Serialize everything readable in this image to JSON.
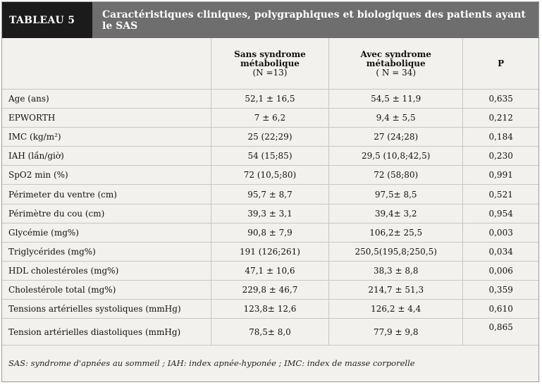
{
  "header": {
    "label": "TABLEAU 5",
    "title": "Caractéristiques cliniques, polygraphiques et biologiques des patients ayant le SAS"
  },
  "columns": [
    {
      "line1": "Sans syndrome",
      "line2": "métabolique",
      "line3": "(N =13)"
    },
    {
      "line1": "Avec syndrome",
      "line2": "métabolique",
      "line3": "( N = 34)"
    },
    {
      "line1": "P"
    }
  ],
  "rows": [
    {
      "label": "Age (ans)",
      "a": "52,1 ± 16,5",
      "b": "54,5 ± 11,9",
      "p": "0,635"
    },
    {
      "label": "EPWORTH",
      "a": "7 ± 6,2",
      "b": "9,4 ± 5,5",
      "p": "0,212"
    },
    {
      "label": "IMC (kg/m²)",
      "a": "25 (22;29)",
      "b": "27 (24;28)",
      "p": "0,184"
    },
    {
      "label": "IAH (lần/giờ)",
      "a": "54 (15;85)",
      "b": "29,5 (10,8;42,5)",
      "p": "0,230"
    },
    {
      "label": "SpO2 min (%)",
      "a": "72 (10,5;80)",
      "b": "72 (58;80)",
      "p": "0,991"
    },
    {
      "label": "Périmeter du ventre (cm)",
      "a": "95,7 ± 8,7",
      "b": "97,5± 8,5",
      "p": "0,521"
    },
    {
      "label": "Périmètre du cou  (cm)",
      "a": "39,3 ± 3,1",
      "b": "39,4± 3,2",
      "p": "0,954"
    },
    {
      "label": "Glycémie (mg%)",
      "a": "90,8 ± 7,9",
      "b": "106,2± 25,5",
      "p": "0,003"
    },
    {
      "label": "Triglycérides (mg%)",
      "a": "191 (126;261)",
      "b": "250,5(195,8;250,5)",
      "p": "0,034"
    },
    {
      "label": "HDL cholestéroles (mg%)",
      "a": "47,1 ± 10,6",
      "b": "38,3 ± 8,8",
      "p": "0,006"
    },
    {
      "label": "Cholestérole total (mg%)",
      "a": "229,8 ± 46,7",
      "b": "214,7 ± 51,3",
      "p": "0,359"
    },
    {
      "label": "Tensions artérielles systoliques (mmHg)",
      "a": "123,8±  12,6",
      "b": "126,2 ±  4,4",
      "p": "0,610"
    },
    {
      "label": "Tension artérielles diastoliques (mmHg)",
      "a": "78,5±  8,0",
      "b": "77,9 ± 9,8",
      "p": "0,865"
    }
  ],
  "footnote": "SAS: syndrome d'apnées au sommeil ; IAH: index apnée-hyponée ; IMC: index de masse corporelle"
}
